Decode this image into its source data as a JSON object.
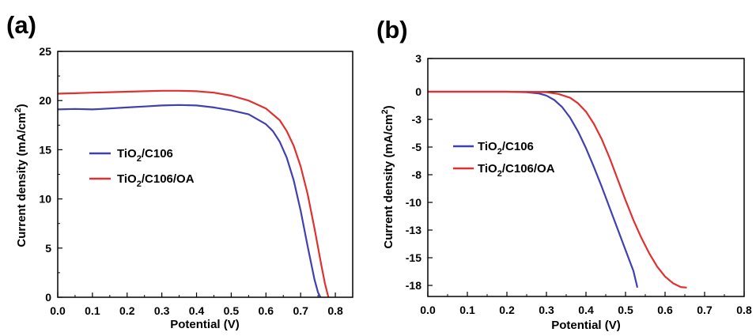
{
  "chart_data": [
    {
      "panel": "(a)",
      "type": "line",
      "xlabel": "Potential (V)",
      "ylabel_main": "Current density (mA/cm",
      "ylabel_sup": "2",
      "ylabel_end": ")",
      "xlim": [
        0.0,
        0.85
      ],
      "ylim": [
        0,
        25
      ],
      "xticks": [
        0.0,
        0.1,
        0.2,
        0.3,
        0.4,
        0.5,
        0.6,
        0.7,
        0.8
      ],
      "xtick_labels": [
        "0.0",
        "0.1",
        "0.2",
        "0.3",
        "0.4",
        "0.5",
        "0.6",
        "0.7",
        "0.8"
      ],
      "yticks": [
        0,
        5,
        10,
        15,
        20,
        25
      ],
      "ytick_labels": [
        "0",
        "5",
        "10",
        "15",
        "20",
        "25"
      ],
      "legend_position": "center-left",
      "series": [
        {
          "name": "TiO2/C106",
          "name_parts": [
            "TiO",
            "2",
            "/C106"
          ],
          "color": "#4040b0",
          "x": [
            0.0,
            0.05,
            0.1,
            0.15,
            0.2,
            0.25,
            0.3,
            0.35,
            0.4,
            0.45,
            0.5,
            0.55,
            0.6,
            0.62,
            0.64,
            0.66,
            0.68,
            0.7,
            0.72,
            0.74,
            0.75,
            0.757
          ],
          "y": [
            19.1,
            19.15,
            19.1,
            19.2,
            19.3,
            19.4,
            19.5,
            19.55,
            19.5,
            19.3,
            19.0,
            18.6,
            17.6,
            16.9,
            15.8,
            14.2,
            11.9,
            8.8,
            5.2,
            1.8,
            0.5,
            0
          ]
        },
        {
          "name": "TiO2/C106/OA",
          "name_parts": [
            "TiO",
            "2",
            "/C106/OA"
          ],
          "color": "#e03030",
          "x": [
            0.0,
            0.05,
            0.1,
            0.15,
            0.2,
            0.25,
            0.3,
            0.35,
            0.4,
            0.45,
            0.5,
            0.55,
            0.6,
            0.64,
            0.66,
            0.68,
            0.7,
            0.72,
            0.74,
            0.76,
            0.77,
            0.78
          ],
          "y": [
            20.7,
            20.75,
            20.8,
            20.85,
            20.9,
            20.95,
            21.0,
            21.0,
            20.95,
            20.8,
            20.5,
            20.0,
            19.2,
            18.0,
            16.9,
            15.4,
            13.3,
            10.5,
            7.0,
            3.2,
            1.4,
            0
          ]
        }
      ]
    },
    {
      "panel": "(b)",
      "type": "line",
      "xlabel": "Potential (V)",
      "ylabel_main": "Current density (mA/cm",
      "ylabel_sup": "2",
      "ylabel_end": ")",
      "xlim": [
        0.0,
        0.8
      ],
      "ylim": [
        -18.5,
        3
      ],
      "xticks": [
        0.0,
        0.1,
        0.2,
        0.3,
        0.4,
        0.5,
        0.6,
        0.7,
        0.8
      ],
      "xtick_labels": [
        "0.0",
        "0.1",
        "0.2",
        "0.3",
        "0.4",
        "0.5",
        "0.6",
        "0.7",
        "0.8"
      ],
      "yticks": [
        3,
        0,
        -2.5,
        -5,
        -7.5,
        -10,
        -12.5,
        -15,
        -17.5
      ],
      "ytick_labels": [
        "3",
        "0",
        "-3",
        "-5",
        "-8",
        "-10",
        "-13",
        "-15",
        "-18"
      ],
      "zero_line": 0,
      "legend_position": "center-left",
      "series": [
        {
          "name": "TiO2/C106",
          "name_parts": [
            "TiO",
            "2",
            "/C106"
          ],
          "color": "#4040b0",
          "x": [
            0.0,
            0.1,
            0.2,
            0.25,
            0.28,
            0.3,
            0.32,
            0.34,
            0.36,
            0.38,
            0.4,
            0.42,
            0.44,
            0.46,
            0.48,
            0.5,
            0.52,
            0.53
          ],
          "y": [
            0,
            0,
            0,
            -0.05,
            -0.15,
            -0.35,
            -0.75,
            -1.4,
            -2.35,
            -3.6,
            -5.1,
            -6.8,
            -8.6,
            -10.5,
            -12.4,
            -14.3,
            -16.2,
            -17.7
          ]
        },
        {
          "name": "TiO2/C106/OA",
          "name_parts": [
            "TiO",
            "2",
            "/C106/OA"
          ],
          "color": "#e03030",
          "x": [
            0.0,
            0.1,
            0.2,
            0.3,
            0.33,
            0.36,
            0.38,
            0.4,
            0.42,
            0.44,
            0.46,
            0.48,
            0.5,
            0.52,
            0.54,
            0.56,
            0.58,
            0.6,
            0.62,
            0.64,
            0.655
          ],
          "y": [
            0,
            0,
            0,
            -0.05,
            -0.2,
            -0.55,
            -1.05,
            -1.8,
            -2.9,
            -4.3,
            -6.0,
            -7.9,
            -9.8,
            -11.6,
            -13.2,
            -14.6,
            -15.8,
            -16.7,
            -17.3,
            -17.65,
            -17.7
          ]
        }
      ]
    }
  ]
}
